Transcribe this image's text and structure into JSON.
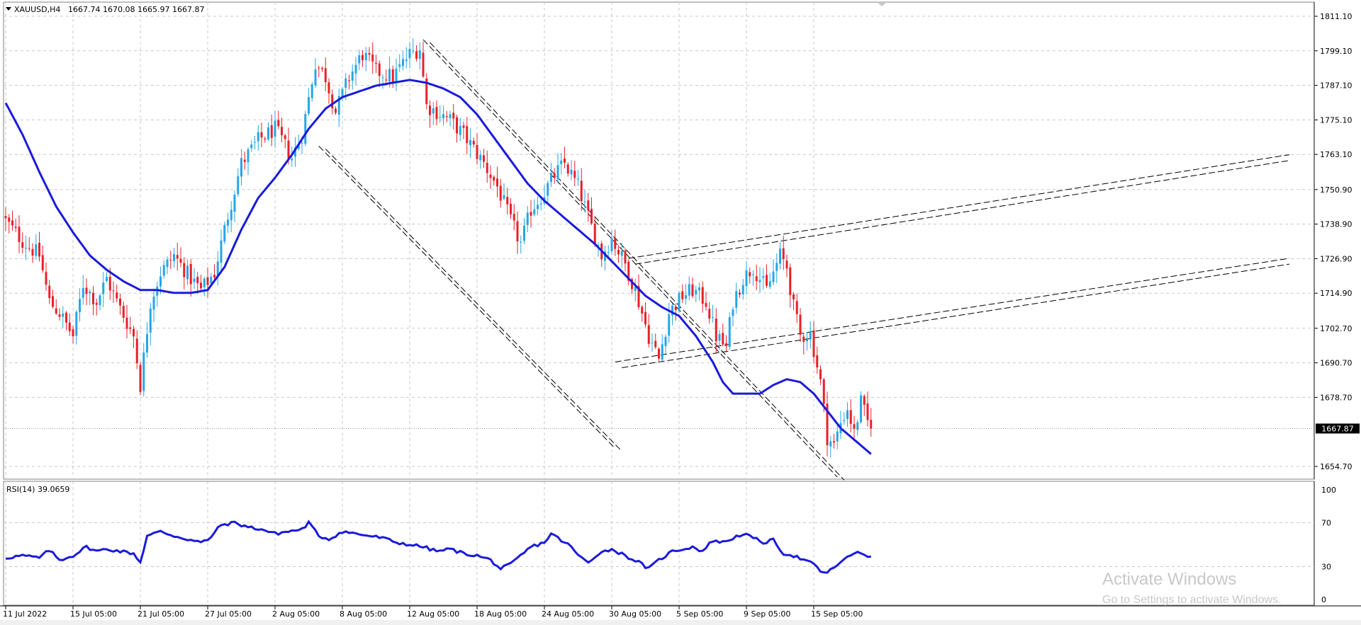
{
  "window": {
    "symbol_title": "XAUUSD,H4",
    "ohlc_text": "1667.74 1670.08 1665.97 1667.87"
  },
  "watermark": {
    "line1": "Activate Windows",
    "line2": "Go to Settings to activate Windows."
  },
  "colors": {
    "bull": "#26a6e8",
    "bear": "#e8202a",
    "ma": "#1a1adc",
    "rsi": "#1a1adc",
    "grid": "#c8c8c8",
    "trendline": "#000000",
    "price_label_bg": "#000000"
  },
  "chart_data": [
    {
      "type": "candlestick",
      "title": "XAUUSD,H4",
      "current_price": 1667.87,
      "current_price_label": "1667.87",
      "ylim": [
        1649.0,
        1815.0
      ],
      "y_ticks": [
        1811.1,
        1799.1,
        1787.1,
        1775.1,
        1763.1,
        1750.9,
        1738.9,
        1726.9,
        1714.9,
        1702.7,
        1690.7,
        1678.7,
        1654.7
      ],
      "y_tick_labels": [
        "1811.10",
        "1799.10",
        "1787.10",
        "1775.10",
        "1763.10",
        "1750.90",
        "1738.90",
        "1726.90",
        "1714.90",
        "1702.70",
        "1690.70",
        "1678.70",
        "1654.70"
      ],
      "x_tick_labels": [
        "11 Jul 2022",
        "15 Jul 05:00",
        "21 Jul 05:00",
        "27 Jul 05:00",
        "2 Aug 05:00",
        "8 Aug 05:00",
        "12 Aug 05:00",
        "18 Aug 05:00",
        "24 Aug 05:00",
        "30 Aug 05:00",
        "5 Sep 05:00",
        "9 Sep 05:00",
        "15 Sep 05:00"
      ],
      "x_tick_bars": [
        0,
        20,
        40,
        60,
        80,
        100,
        120,
        140,
        160,
        180,
        200,
        220,
        240
      ],
      "bar_count": 258,
      "close_path_keypoints": [
        [
          0,
          1740
        ],
        [
          5,
          1733
        ],
        [
          10,
          1728
        ],
        [
          13,
          1712
        ],
        [
          16,
          1708
        ],
        [
          20,
          1700
        ],
        [
          23,
          1718
        ],
        [
          27,
          1712
        ],
        [
          30,
          1720
        ],
        [
          33,
          1712
        ],
        [
          38,
          1700
        ],
        [
          40,
          1683
        ],
        [
          43,
          1712
        ],
        [
          46,
          1722
        ],
        [
          50,
          1728
        ],
        [
          55,
          1720
        ],
        [
          58,
          1716
        ],
        [
          62,
          1722
        ],
        [
          66,
          1742
        ],
        [
          70,
          1760
        ],
        [
          75,
          1768
        ],
        [
          80,
          1772
        ],
        [
          85,
          1762
        ],
        [
          88,
          1770
        ],
        [
          92,
          1795
        ],
        [
          95,
          1790
        ],
        [
          98,
          1778
        ],
        [
          102,
          1790
        ],
        [
          106,
          1798
        ],
        [
          110,
          1792
        ],
        [
          115,
          1790
        ],
        [
          120,
          1798
        ],
        [
          123,
          1800
        ],
        [
          125,
          1780
        ],
        [
          128,
          1778
        ],
        [
          132,
          1775
        ],
        [
          136,
          1770
        ],
        [
          139,
          1765
        ],
        [
          142,
          1760
        ],
        [
          146,
          1752
        ],
        [
          150,
          1740
        ],
        [
          153,
          1732
        ],
        [
          156,
          1744
        ],
        [
          160,
          1750
        ],
        [
          163,
          1756
        ],
        [
          166,
          1760
        ],
        [
          170,
          1752
        ],
        [
          174,
          1738
        ],
        [
          177,
          1728
        ],
        [
          180,
          1734
        ],
        [
          184,
          1725
        ],
        [
          187,
          1716
        ],
        [
          191,
          1700
        ],
        [
          194,
          1692
        ],
        [
          197,
          1708
        ],
        [
          201,
          1714
        ],
        [
          204,
          1716
        ],
        [
          208,
          1712
        ],
        [
          211,
          1700
        ],
        [
          214,
          1696
        ],
        [
          216,
          1712
        ],
        [
          219,
          1720
        ],
        [
          222,
          1724
        ],
        [
          226,
          1716
        ],
        [
          230,
          1728
        ],
        [
          232,
          1724
        ],
        [
          234,
          1710
        ],
        [
          236,
          1700
        ],
        [
          239,
          1701
        ],
        [
          242,
          1684
        ],
        [
          244,
          1665
        ],
        [
          246,
          1662
        ],
        [
          248,
          1670
        ],
        [
          250,
          1675
        ],
        [
          252,
          1666
        ],
        [
          254,
          1677
        ],
        [
          256,
          1670
        ],
        [
          257,
          1667.87
        ]
      ],
      "ma_path_keypoints": [
        [
          0,
          1781
        ],
        [
          5,
          1770
        ],
        [
          10,
          1757
        ],
        [
          15,
          1745
        ],
        [
          20,
          1736
        ],
        [
          25,
          1728
        ],
        [
          30,
          1723
        ],
        [
          35,
          1719
        ],
        [
          40,
          1716
        ],
        [
          45,
          1716
        ],
        [
          50,
          1715
        ],
        [
          55,
          1715
        ],
        [
          60,
          1716
        ],
        [
          65,
          1724
        ],
        [
          70,
          1737
        ],
        [
          75,
          1748
        ],
        [
          80,
          1755
        ],
        [
          85,
          1763
        ],
        [
          90,
          1772
        ],
        [
          95,
          1779
        ],
        [
          100,
          1783
        ],
        [
          105,
          1785
        ],
        [
          110,
          1787
        ],
        [
          115,
          1788
        ],
        [
          120,
          1789
        ],
        [
          125,
          1788
        ],
        [
          130,
          1786
        ],
        [
          135,
          1783
        ],
        [
          140,
          1777
        ],
        [
          145,
          1769
        ],
        [
          150,
          1761
        ],
        [
          155,
          1753
        ],
        [
          160,
          1747
        ],
        [
          165,
          1742
        ],
        [
          170,
          1737
        ],
        [
          175,
          1732
        ],
        [
          180,
          1726
        ],
        [
          185,
          1720
        ],
        [
          190,
          1714
        ],
        [
          195,
          1710
        ],
        [
          200,
          1707
        ],
        [
          205,
          1700
        ],
        [
          210,
          1691
        ],
        [
          213,
          1684
        ],
        [
          216,
          1680
        ],
        [
          220,
          1680
        ],
        [
          224,
          1680
        ],
        [
          228,
          1683
        ],
        [
          232,
          1685
        ],
        [
          236,
          1684
        ],
        [
          240,
          1680
        ],
        [
          244,
          1674
        ],
        [
          248,
          1668
        ],
        [
          252,
          1664
        ],
        [
          256,
          1660
        ],
        [
          257,
          1659
        ]
      ]
    },
    {
      "type": "line",
      "title": "RSI(14) 39.0659",
      "ylim": [
        0,
        100
      ],
      "y_ticks": [
        100,
        70,
        30,
        0
      ],
      "y_tick_labels": [
        "100",
        "70",
        "30",
        "0"
      ],
      "rsi_path_keypoints": [
        [
          0,
          38
        ],
        [
          5,
          40
        ],
        [
          10,
          38
        ],
        [
          13,
          45
        ],
        [
          16,
          36
        ],
        [
          20,
          40
        ],
        [
          24,
          48
        ],
        [
          27,
          44
        ],
        [
          30,
          46
        ],
        [
          34,
          44
        ],
        [
          38,
          42
        ],
        [
          40,
          34
        ],
        [
          42,
          58
        ],
        [
          46,
          62
        ],
        [
          50,
          58
        ],
        [
          54,
          55
        ],
        [
          58,
          52
        ],
        [
          60,
          54
        ],
        [
          64,
          68
        ],
        [
          68,
          70
        ],
        [
          72,
          66
        ],
        [
          76,
          64
        ],
        [
          80,
          60
        ],
        [
          84,
          62
        ],
        [
          88,
          64
        ],
        [
          90,
          70
        ],
        [
          93,
          58
        ],
        [
          96,
          55
        ],
        [
          100,
          62
        ],
        [
          104,
          60
        ],
        [
          108,
          58
        ],
        [
          112,
          56
        ],
        [
          116,
          52
        ],
        [
          120,
          50
        ],
        [
          124,
          48
        ],
        [
          128,
          44
        ],
        [
          132,
          46
        ],
        [
          136,
          42
        ],
        [
          140,
          40
        ],
        [
          144,
          36
        ],
        [
          147,
          28
        ],
        [
          150,
          32
        ],
        [
          153,
          40
        ],
        [
          156,
          48
        ],
        [
          160,
          52
        ],
        [
          162,
          60
        ],
        [
          165,
          54
        ],
        [
          168,
          48
        ],
        [
          170,
          40
        ],
        [
          173,
          34
        ],
        [
          176,
          42
        ],
        [
          180,
          46
        ],
        [
          184,
          40
        ],
        [
          188,
          34
        ],
        [
          191,
          28
        ],
        [
          194,
          36
        ],
        [
          198,
          44
        ],
        [
          201,
          46
        ],
        [
          204,
          48
        ],
        [
          207,
          44
        ],
        [
          210,
          54
        ],
        [
          213,
          52
        ],
        [
          216,
          56
        ],
        [
          219,
          60
        ],
        [
          222,
          56
        ],
        [
          225,
          52
        ],
        [
          228,
          54
        ],
        [
          231,
          42
        ],
        [
          234,
          40
        ],
        [
          237,
          36
        ],
        [
          240,
          32
        ],
        [
          242,
          26
        ],
        [
          244,
          24
        ],
        [
          247,
          32
        ],
        [
          250,
          38
        ],
        [
          253,
          44
        ],
        [
          256,
          40
        ],
        [
          257,
          39.07
        ]
      ]
    }
  ]
}
